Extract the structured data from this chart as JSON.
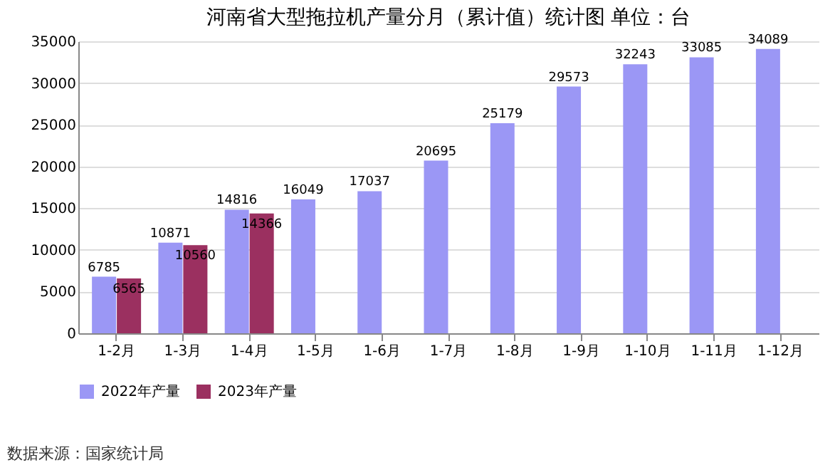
{
  "chart_data": {
    "type": "bar",
    "title": "河南省大型拖拉机产量分月（累计值）统计图 单位：台",
    "categories": [
      "1-2月",
      "1-3月",
      "1-4月",
      "1-5月",
      "1-6月",
      "1-7月",
      "1-8月",
      "1-9月",
      "1-10月",
      "1-11月",
      "1-12月"
    ],
    "series": [
      {
        "name": "2022年产量",
        "color": "#9b97f5",
        "values": [
          6785,
          10871,
          14816,
          16049,
          17037,
          20695,
          25179,
          29573,
          32243,
          33085,
          34089
        ]
      },
      {
        "name": "2023年产量",
        "color": "#9b3060",
        "values": [
          6565,
          10560,
          14366,
          null,
          null,
          null,
          null,
          null,
          null,
          null,
          null
        ]
      }
    ],
    "ylim": [
      0,
      35000
    ],
    "yticks": [
      0,
      5000,
      10000,
      15000,
      20000,
      25000,
      30000,
      35000
    ],
    "grid": "y",
    "legend": "bottom",
    "data_labels": true,
    "annotations": [
      "数据来源：国家统计局"
    ]
  }
}
